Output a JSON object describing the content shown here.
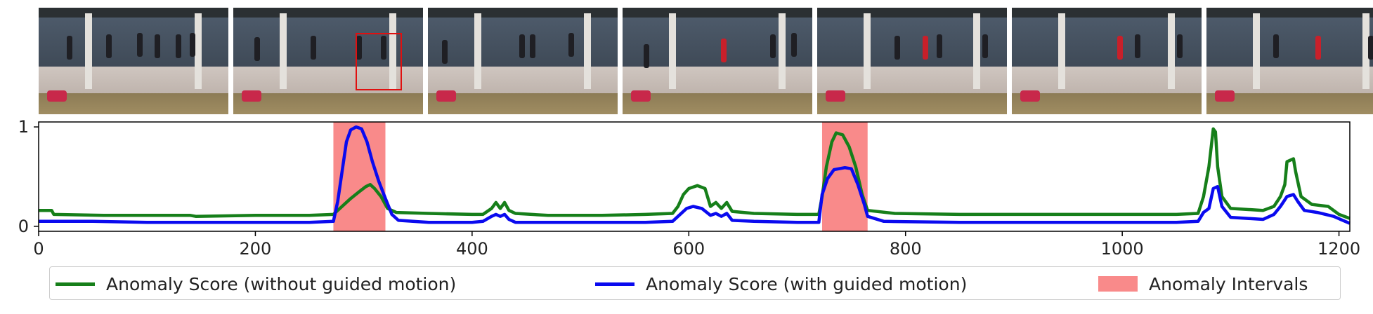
{
  "frames": [
    {
      "id": "frame-1",
      "highlight": false
    },
    {
      "id": "frame-2",
      "highlight": true
    },
    {
      "id": "frame-3",
      "highlight": false
    },
    {
      "id": "frame-4",
      "highlight": false
    },
    {
      "id": "frame-5",
      "highlight": false
    },
    {
      "id": "frame-6",
      "highlight": false
    },
    {
      "id": "frame-7",
      "highlight": false
    }
  ],
  "colors": {
    "green": "#167f1a",
    "blue": "#0a0aef",
    "interval": "#f98a8a",
    "box": "#e01010"
  },
  "legend": {
    "green_label": "Anomaly Score (without guided motion)",
    "blue_label": "Anomaly Score (with guided motion)",
    "interval_label": "Anomaly Intervals"
  },
  "chart_data": {
    "type": "line",
    "xlim": [
      0,
      1210
    ],
    "ylim": [
      -0.05,
      1.05
    ],
    "x_ticks": [
      0,
      200,
      400,
      600,
      800,
      1000,
      1200
    ],
    "y_ticks": [
      0,
      1
    ],
    "title": "",
    "xlabel": "",
    "ylabel": "",
    "grid": false,
    "legend_position": "bottom",
    "intervals": [
      [
        272,
        320
      ],
      [
        723,
        765
      ]
    ],
    "series": [
      {
        "name": "Anomaly Score (without guided motion)",
        "color": "#167f1a",
        "points": [
          [
            0,
            0.16
          ],
          [
            12,
            0.16
          ],
          [
            14,
            0.12
          ],
          [
            60,
            0.11
          ],
          [
            120,
            0.11
          ],
          [
            140,
            0.11
          ],
          [
            145,
            0.1
          ],
          [
            200,
            0.11
          ],
          [
            250,
            0.11
          ],
          [
            272,
            0.12
          ],
          [
            280,
            0.2
          ],
          [
            288,
            0.28
          ],
          [
            296,
            0.35
          ],
          [
            302,
            0.4
          ],
          [
            306,
            0.42
          ],
          [
            310,
            0.38
          ],
          [
            316,
            0.3
          ],
          [
            322,
            0.18
          ],
          [
            330,
            0.14
          ],
          [
            360,
            0.13
          ],
          [
            400,
            0.12
          ],
          [
            410,
            0.12
          ],
          [
            418,
            0.18
          ],
          [
            422,
            0.24
          ],
          [
            426,
            0.18
          ],
          [
            430,
            0.24
          ],
          [
            434,
            0.16
          ],
          [
            440,
            0.13
          ],
          [
            470,
            0.11
          ],
          [
            520,
            0.11
          ],
          [
            560,
            0.12
          ],
          [
            585,
            0.13
          ],
          [
            590,
            0.2
          ],
          [
            595,
            0.32
          ],
          [
            600,
            0.38
          ],
          [
            608,
            0.41
          ],
          [
            615,
            0.38
          ],
          [
            620,
            0.2
          ],
          [
            625,
            0.24
          ],
          [
            630,
            0.18
          ],
          [
            635,
            0.24
          ],
          [
            640,
            0.15
          ],
          [
            660,
            0.13
          ],
          [
            700,
            0.12
          ],
          [
            720,
            0.12
          ],
          [
            723,
            0.3
          ],
          [
            727,
            0.6
          ],
          [
            732,
            0.85
          ],
          [
            736,
            0.94
          ],
          [
            742,
            0.92
          ],
          [
            748,
            0.8
          ],
          [
            754,
            0.6
          ],
          [
            760,
            0.32
          ],
          [
            765,
            0.16
          ],
          [
            790,
            0.13
          ],
          [
            850,
            0.12
          ],
          [
            900,
            0.12
          ],
          [
            950,
            0.12
          ],
          [
            1000,
            0.12
          ],
          [
            1050,
            0.12
          ],
          [
            1070,
            0.13
          ],
          [
            1075,
            0.3
          ],
          [
            1080,
            0.6
          ],
          [
            1084,
            0.98
          ],
          [
            1086,
            0.95
          ],
          [
            1088,
            0.6
          ],
          [
            1092,
            0.3
          ],
          [
            1100,
            0.18
          ],
          [
            1130,
            0.16
          ],
          [
            1140,
            0.2
          ],
          [
            1146,
            0.3
          ],
          [
            1150,
            0.42
          ],
          [
            1152,
            0.65
          ],
          [
            1158,
            0.68
          ],
          [
            1160,
            0.55
          ],
          [
            1165,
            0.3
          ],
          [
            1175,
            0.22
          ],
          [
            1190,
            0.2
          ],
          [
            1200,
            0.12
          ],
          [
            1210,
            0.08
          ]
        ]
      },
      {
        "name": "Anomaly Score (with guided motion)",
        "color": "#0a0aef",
        "points": [
          [
            0,
            0.05
          ],
          [
            50,
            0.05
          ],
          [
            100,
            0.04
          ],
          [
            150,
            0.04
          ],
          [
            200,
            0.04
          ],
          [
            250,
            0.04
          ],
          [
            272,
            0.05
          ],
          [
            276,
            0.25
          ],
          [
            280,
            0.55
          ],
          [
            284,
            0.85
          ],
          [
            288,
            0.97
          ],
          [
            293,
            1.0
          ],
          [
            298,
            0.98
          ],
          [
            303,
            0.85
          ],
          [
            308,
            0.65
          ],
          [
            314,
            0.45
          ],
          [
            320,
            0.28
          ],
          [
            326,
            0.12
          ],
          [
            332,
            0.06
          ],
          [
            360,
            0.04
          ],
          [
            400,
            0.04
          ],
          [
            410,
            0.05
          ],
          [
            418,
            0.1
          ],
          [
            422,
            0.12
          ],
          [
            426,
            0.1
          ],
          [
            430,
            0.12
          ],
          [
            434,
            0.07
          ],
          [
            440,
            0.04
          ],
          [
            500,
            0.04
          ],
          [
            560,
            0.04
          ],
          [
            585,
            0.05
          ],
          [
            590,
            0.1
          ],
          [
            598,
            0.18
          ],
          [
            604,
            0.2
          ],
          [
            612,
            0.18
          ],
          [
            620,
            0.11
          ],
          [
            625,
            0.13
          ],
          [
            630,
            0.1
          ],
          [
            635,
            0.13
          ],
          [
            640,
            0.06
          ],
          [
            660,
            0.05
          ],
          [
            700,
            0.04
          ],
          [
            720,
            0.04
          ],
          [
            723,
            0.32
          ],
          [
            728,
            0.48
          ],
          [
            734,
            0.57
          ],
          [
            744,
            0.59
          ],
          [
            750,
            0.58
          ],
          [
            756,
            0.42
          ],
          [
            762,
            0.22
          ],
          [
            765,
            0.1
          ],
          [
            780,
            0.05
          ],
          [
            850,
            0.04
          ],
          [
            950,
            0.04
          ],
          [
            1050,
            0.04
          ],
          [
            1070,
            0.05
          ],
          [
            1075,
            0.14
          ],
          [
            1080,
            0.18
          ],
          [
            1084,
            0.38
          ],
          [
            1088,
            0.4
          ],
          [
            1092,
            0.2
          ],
          [
            1100,
            0.09
          ],
          [
            1130,
            0.07
          ],
          [
            1140,
            0.12
          ],
          [
            1146,
            0.2
          ],
          [
            1152,
            0.3
          ],
          [
            1158,
            0.32
          ],
          [
            1162,
            0.25
          ],
          [
            1168,
            0.16
          ],
          [
            1180,
            0.14
          ],
          [
            1195,
            0.1
          ],
          [
            1210,
            0.03
          ]
        ]
      }
    ]
  }
}
